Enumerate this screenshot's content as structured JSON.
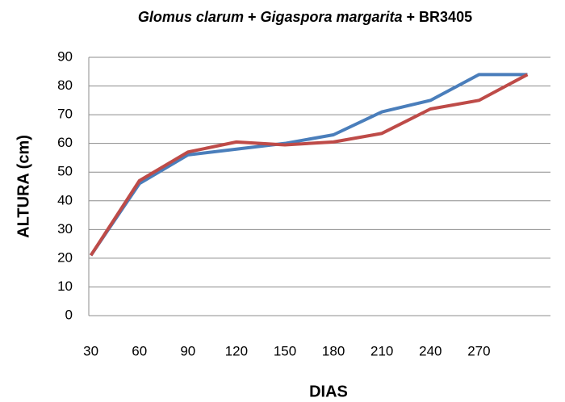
{
  "chart_data": {
    "type": "line",
    "title": [
      "Glomus clarum",
      " + ",
      "Gigaspora margarita",
      " + BR3405"
    ],
    "xlabel": "DIAS",
    "ylabel": "ALTURA  (cm)",
    "categories": [
      "30",
      "60",
      "90",
      "120",
      "150",
      "180",
      "210",
      "240",
      "270",
      null
    ],
    "series": [
      {
        "color": "#4a7ebb",
        "values": [
          21,
          46,
          56,
          58,
          60,
          63,
          71,
          75,
          84,
          84
        ]
      },
      {
        "color": "#be4b48",
        "values": [
          21,
          47,
          57,
          60.5,
          59.5,
          60.5,
          63.5,
          72,
          75,
          84
        ]
      }
    ],
    "ylim": [
      0,
      90
    ],
    "yticks": [
      0,
      10,
      20,
      30,
      40,
      50,
      60,
      70,
      80,
      90
    ],
    "grid": true
  }
}
